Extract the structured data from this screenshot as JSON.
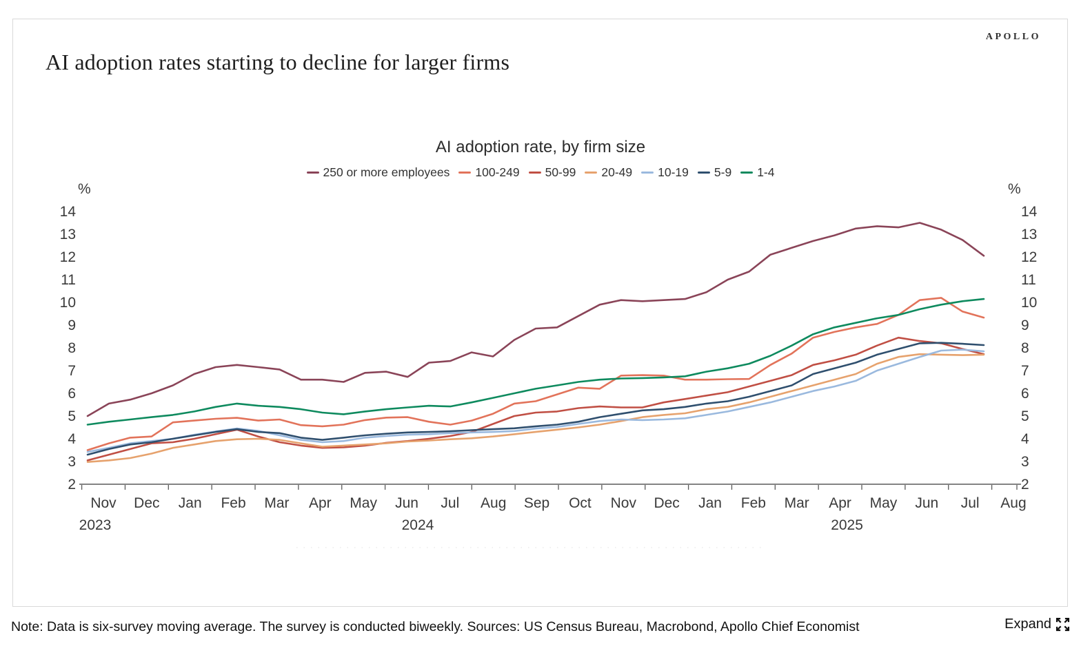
{
  "page": {
    "title": "AI adoption rates starting to decline for larger firms",
    "brand": "APOLLO"
  },
  "chart_data": {
    "type": "line",
    "title": "AI adoption rate, by firm size",
    "unit_label": "%",
    "ylim": [
      2,
      14
    ],
    "y_ticks": [
      2,
      3,
      4,
      5,
      6,
      7,
      8,
      9,
      10,
      11,
      12,
      13,
      14
    ],
    "grid": false,
    "legend_position": "top",
    "sampling": "biweekly points (six-survey moving average), Nov 2023 to late Jul 2025",
    "x_month_labels": [
      "Nov",
      "Dec",
      "Jan",
      "Feb",
      "Mar",
      "Apr",
      "May",
      "Jun",
      "Jul",
      "Aug",
      "Sep",
      "Oct",
      "Nov",
      "Dec",
      "Jan",
      "Feb",
      "Mar",
      "Apr",
      "May",
      "Jun",
      "Jul",
      "Aug"
    ],
    "x_year_labels": [
      {
        "text": "2023",
        "month_index": 0
      },
      {
        "text": "2024",
        "month_index": 7
      },
      {
        "text": "2025",
        "month_index": 17
      }
    ],
    "series": [
      {
        "name": "250 or more employees",
        "color": "#8a4458",
        "values": [
          5.0,
          5.55,
          5.72,
          6.0,
          6.35,
          6.85,
          7.15,
          7.25,
          7.15,
          7.05,
          6.6,
          6.6,
          6.5,
          6.9,
          6.95,
          6.72,
          7.35,
          7.42,
          7.8,
          7.62,
          8.35,
          8.85,
          8.9,
          9.4,
          9.9,
          10.1,
          10.05,
          10.1,
          10.15,
          10.45,
          11.0,
          11.35,
          12.1,
          12.4,
          12.7,
          12.95,
          13.25,
          13.35,
          13.3,
          13.5,
          13.2,
          12.75,
          12.05
        ]
      },
      {
        "name": "100-249",
        "color": "#e2735a",
        "values": [
          3.5,
          3.8,
          4.05,
          4.1,
          4.72,
          4.8,
          4.88,
          4.92,
          4.8,
          4.85,
          4.6,
          4.55,
          4.62,
          4.82,
          4.93,
          4.95,
          4.75,
          4.62,
          4.8,
          5.1,
          5.55,
          5.65,
          5.95,
          6.25,
          6.2,
          6.78,
          6.8,
          6.78,
          6.6,
          6.6,
          6.62,
          6.63,
          7.25,
          7.75,
          8.45,
          8.7,
          8.9,
          9.05,
          9.45,
          10.1,
          10.2,
          9.6,
          9.33
        ]
      },
      {
        "name": "50-99",
        "color": "#c04f44",
        "values": [
          3.05,
          3.3,
          3.55,
          3.8,
          3.85,
          4.0,
          4.2,
          4.4,
          4.1,
          3.85,
          3.7,
          3.6,
          3.62,
          3.7,
          3.82,
          3.9,
          4.0,
          4.12,
          4.3,
          4.65,
          5.0,
          5.15,
          5.2,
          5.35,
          5.42,
          5.38,
          5.38,
          5.6,
          5.75,
          5.9,
          6.05,
          6.3,
          6.55,
          6.8,
          7.25,
          7.45,
          7.7,
          8.1,
          8.45,
          8.3,
          8.2,
          7.95,
          7.72
        ]
      },
      {
        "name": "20-49",
        "color": "#e6a26d",
        "values": [
          2.98,
          3.05,
          3.15,
          3.35,
          3.6,
          3.75,
          3.9,
          3.98,
          4.0,
          3.95,
          3.8,
          3.65,
          3.7,
          3.75,
          3.8,
          3.88,
          3.92,
          3.98,
          4.02,
          4.1,
          4.2,
          4.3,
          4.4,
          4.5,
          4.62,
          4.78,
          4.95,
          5.05,
          5.12,
          5.3,
          5.4,
          5.6,
          5.85,
          6.1,
          6.35,
          6.6,
          6.85,
          7.3,
          7.6,
          7.72,
          7.7,
          7.68,
          7.7
        ]
      },
      {
        "name": "10-19",
        "color": "#9ab9de",
        "values": [
          3.42,
          3.6,
          3.8,
          3.9,
          4.0,
          4.18,
          4.32,
          4.45,
          4.35,
          4.15,
          3.95,
          3.85,
          3.9,
          4.05,
          4.12,
          4.18,
          4.2,
          4.25,
          4.28,
          4.3,
          4.34,
          4.45,
          4.52,
          4.65,
          4.78,
          4.85,
          4.82,
          4.85,
          4.9,
          5.05,
          5.2,
          5.4,
          5.6,
          5.85,
          6.1,
          6.3,
          6.55,
          7.0,
          7.3,
          7.6,
          7.88,
          7.92,
          7.85
        ]
      },
      {
        "name": "5-9",
        "color": "#2f4f6e",
        "values": [
          3.3,
          3.55,
          3.75,
          3.85,
          4.0,
          4.15,
          4.3,
          4.42,
          4.3,
          4.25,
          4.05,
          3.95,
          4.05,
          4.15,
          4.22,
          4.28,
          4.3,
          4.33,
          4.38,
          4.42,
          4.46,
          4.55,
          4.62,
          4.75,
          4.95,
          5.1,
          5.25,
          5.3,
          5.4,
          5.55,
          5.65,
          5.85,
          6.1,
          6.35,
          6.85,
          7.1,
          7.35,
          7.7,
          7.95,
          8.2,
          8.22,
          8.18,
          8.12
        ]
      },
      {
        "name": "1-4",
        "color": "#0e8a5e",
        "values": [
          4.62,
          4.75,
          4.85,
          4.95,
          5.05,
          5.2,
          5.4,
          5.55,
          5.45,
          5.4,
          5.3,
          5.15,
          5.08,
          5.2,
          5.3,
          5.38,
          5.45,
          5.42,
          5.6,
          5.8,
          6.0,
          6.2,
          6.35,
          6.5,
          6.6,
          6.65,
          6.67,
          6.7,
          6.75,
          6.95,
          7.1,
          7.3,
          7.65,
          8.1,
          8.6,
          8.9,
          9.1,
          9.3,
          9.45,
          9.7,
          9.9,
          10.05,
          10.15
        ]
      }
    ]
  },
  "footer": {
    "note": "Note: Data is six-survey moving average. The survey is conducted biweekly. Sources: US Census Bureau, Macrobond, Apollo Chief Economist",
    "expand_label": "Expand"
  }
}
